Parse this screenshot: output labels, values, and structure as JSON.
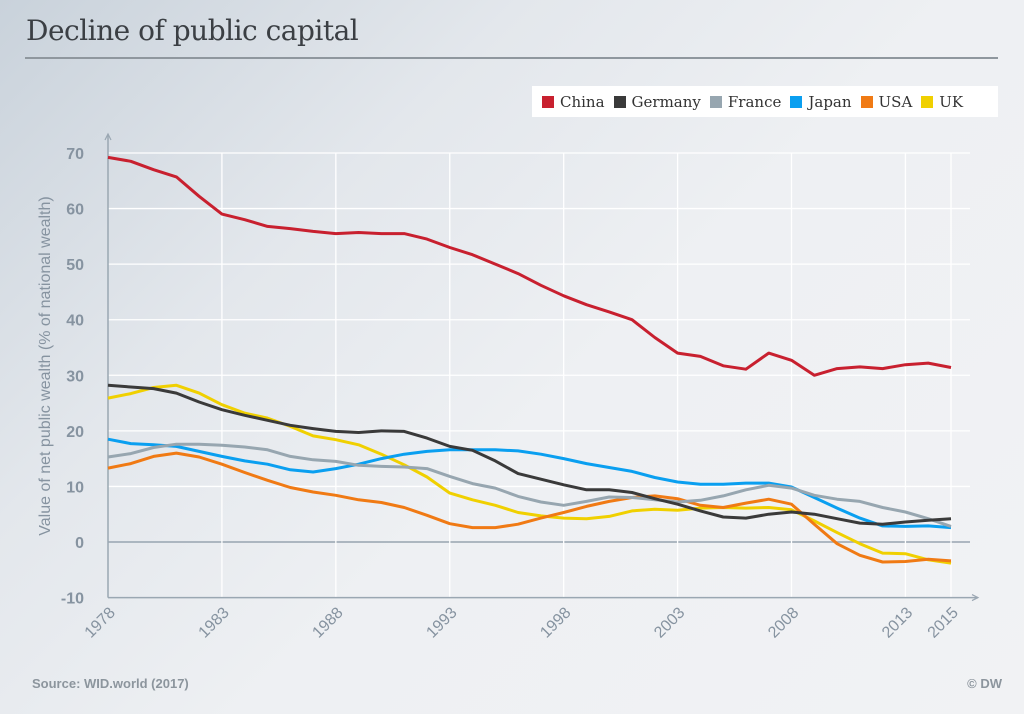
{
  "header": {
    "title": "Decline of public capital"
  },
  "footer": {
    "source": "Source: WID.world (2017)",
    "credit": "© DW"
  },
  "chart_data": {
    "type": "line",
    "title": "Decline of public capital",
    "ylabel": "Value of net public wealth (% of national wealth)",
    "xlabel": "",
    "ylim": [
      -10,
      70
    ],
    "yticks": [
      -10,
      0,
      10,
      20,
      30,
      40,
      50,
      60,
      70
    ],
    "xlim": [
      1978,
      2015
    ],
    "xticks": [
      1978,
      1983,
      1988,
      1993,
      1998,
      2003,
      2008,
      2013,
      2015
    ],
    "grid": true,
    "legend_position": "top-right",
    "x": [
      1978,
      1979,
      1980,
      1981,
      1982,
      1983,
      1984,
      1985,
      1986,
      1987,
      1988,
      1989,
      1990,
      1991,
      1992,
      1993,
      1994,
      1995,
      1996,
      1997,
      1998,
      1999,
      2000,
      2001,
      2002,
      2003,
      2004,
      2005,
      2006,
      2007,
      2008,
      2009,
      2010,
      2011,
      2012,
      2013,
      2014,
      2015
    ],
    "series": [
      {
        "name": "China",
        "color": "#c8202f",
        "values": [
          69.2,
          68.5,
          67,
          65.7,
          62.2,
          59,
          58,
          56.8,
          56.4,
          55.9,
          55.5,
          55.7,
          55.5,
          55.5,
          54.5,
          53,
          51.7,
          50,
          48.3,
          46.2,
          44.3,
          42.7,
          41.4,
          40,
          36.8,
          34,
          33.4,
          31.7,
          31.1,
          34,
          32.7,
          30,
          31.2,
          31.5,
          31.2,
          31.9,
          32.2,
          31.4
        ]
      },
      {
        "name": "Germany",
        "color": "#3a3a3a",
        "values": [
          28.2,
          27.9,
          27.6,
          26.8,
          25.2,
          23.8,
          22.8,
          21.9,
          21,
          20.4,
          19.9,
          19.7,
          20,
          19.9,
          18.7,
          17.2,
          16.5,
          14.6,
          12.3,
          11.3,
          10.3,
          9.4,
          9.4,
          8.9,
          7.8,
          6.8,
          5.6,
          4.5,
          4.3,
          5,
          5.4,
          5,
          4.2,
          3.4,
          3.2,
          3.6,
          3.9,
          4.2
        ]
      },
      {
        "name": "France",
        "color": "#97a6b0",
        "values": [
          15.3,
          15.9,
          17,
          17.6,
          17.6,
          17.4,
          17.1,
          16.6,
          15.4,
          14.8,
          14.5,
          13.8,
          13.6,
          13.5,
          13.2,
          11.8,
          10.5,
          9.7,
          8.2,
          7.2,
          6.6,
          7.3,
          8.1,
          8,
          7.6,
          7.2,
          7.5,
          8.3,
          9.4,
          10.2,
          9.7,
          8.4,
          7.7,
          7.3,
          6.2,
          5.4,
          4.2,
          2.8
        ]
      },
      {
        "name": "Japan",
        "color": "#0a9ff0",
        "values": [
          18.5,
          17.7,
          17.5,
          17.2,
          16.3,
          15.4,
          14.6,
          14,
          13,
          12.6,
          13.2,
          14,
          15,
          15.8,
          16.3,
          16.6,
          16.6,
          16.6,
          16.4,
          15.8,
          15,
          14.1,
          13.4,
          12.7,
          11.6,
          10.8,
          10.4,
          10.4,
          10.6,
          10.6,
          9.9,
          8,
          6.1,
          4.3,
          2.9,
          2.8,
          2.9,
          2.6
        ]
      },
      {
        "name": "USA",
        "color": "#f07a14",
        "values": [
          13.3,
          14.1,
          15.4,
          16,
          15.3,
          14,
          12.5,
          11.1,
          9.8,
          9,
          8.4,
          7.6,
          7.1,
          6.2,
          4.8,
          3.3,
          2.6,
          2.6,
          3.2,
          4.3,
          5.3,
          6.4,
          7.3,
          8,
          8.3,
          7.8,
          6.6,
          6.2,
          7,
          7.7,
          6.8,
          3.2,
          -0.3,
          -2.4,
          -3.6,
          -3.5,
          -3.1,
          -3.4
        ]
      },
      {
        "name": "UK",
        "color": "#f0d000",
        "values": [
          25.9,
          26.7,
          27.8,
          28.2,
          26.8,
          24.7,
          23.2,
          22.3,
          20.8,
          19.1,
          18.4,
          17.5,
          15.8,
          13.9,
          11.7,
          8.8,
          7.6,
          6.6,
          5.3,
          4.7,
          4.3,
          4.2,
          4.6,
          5.6,
          5.9,
          5.7,
          6.1,
          6.2,
          6.1,
          6.2,
          5.8,
          3.8,
          1.7,
          -0.3,
          -2,
          -2.1,
          -3.2,
          -3.8
        ]
      }
    ]
  }
}
